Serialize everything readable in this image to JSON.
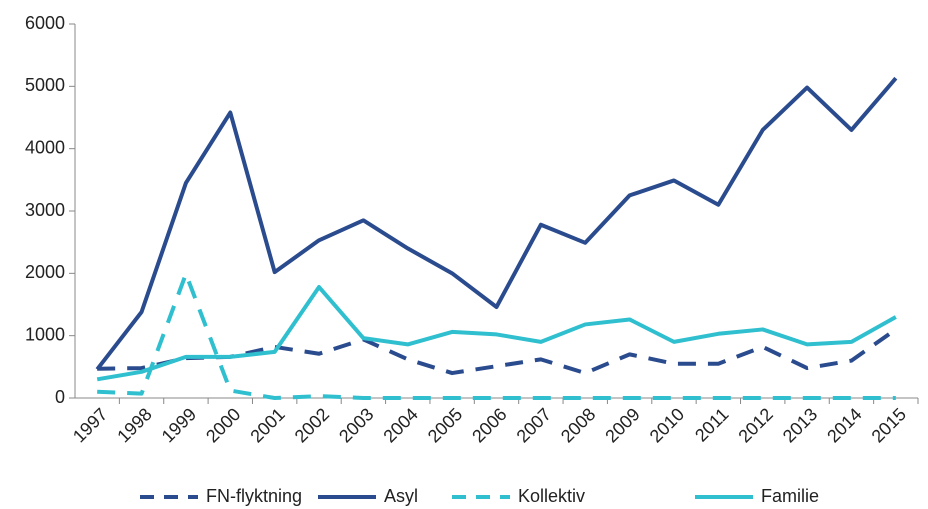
{
  "chart_data": {
    "type": "line",
    "categories": [
      "1997",
      "1998",
      "1999",
      "2000",
      "2001",
      "2002",
      "2003",
      "2004",
      "2005",
      "2006",
      "2007",
      "2008",
      "2009",
      "2010",
      "2011",
      "2012",
      "2013",
      "2014",
      "2015"
    ],
    "series": [
      {
        "name": "FN-flyktning",
        "color": "#2a4b8d",
        "style": "dashed",
        "values": [
          470,
          480,
          640,
          660,
          820,
          710,
          940,
          620,
          400,
          510,
          620,
          400,
          700,
          550,
          550,
          820,
          480,
          600,
          1100
        ]
      },
      {
        "name": "Asyl",
        "color": "#2a4b8d",
        "style": "solid",
        "values": [
          460,
          1380,
          3450,
          4580,
          2020,
          2530,
          2850,
          2400,
          2000,
          1460,
          2780,
          2490,
          3250,
          3490,
          3100,
          4300,
          4980,
          4300,
          5130
        ]
      },
      {
        "name": "Kollektiv",
        "color": "#2fbfcf",
        "style": "dashed",
        "values": [
          100,
          70,
          1990,
          120,
          0,
          30,
          0,
          0,
          0,
          0,
          0,
          0,
          0,
          0,
          0,
          0,
          0,
          0,
          0
        ]
      },
      {
        "name": "Familie",
        "color": "#2fbfcf",
        "style": "solid",
        "values": [
          300,
          420,
          660,
          660,
          740,
          1780,
          960,
          860,
          1060,
          1020,
          900,
          1180,
          1260,
          900,
          1030,
          1100,
          860,
          900,
          1300
        ]
      }
    ],
    "ylim": [
      0,
      6000
    ],
    "yticks": [
      0,
      1000,
      2000,
      3000,
      4000,
      5000,
      6000
    ],
    "legend": "bottom"
  }
}
